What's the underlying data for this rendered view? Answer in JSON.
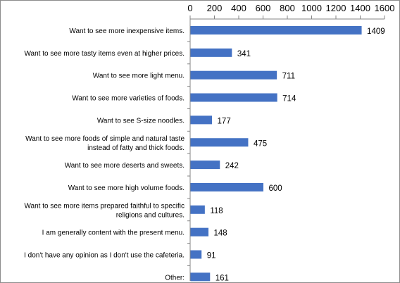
{
  "chart_data": {
    "type": "bar",
    "orientation": "horizontal",
    "title": "",
    "xlabel": "",
    "ylabel": "",
    "xlim": [
      0,
      1600
    ],
    "x_ticks": [
      "0",
      "200",
      "400",
      "600",
      "800",
      "1000",
      "1200",
      "1400",
      "1600"
    ],
    "x_axis_position": "top",
    "grid": false,
    "legend": "none",
    "bar_color": "#4472C4",
    "categories": [
      [
        "Want to see more inexpensive items."
      ],
      [
        "Want to see more tasty items even at higher prices."
      ],
      [
        "Want to see more light menu."
      ],
      [
        "Want to see more varieties of foods."
      ],
      [
        "Want to see S-size noodles."
      ],
      [
        "Want to see more foods of simple and natural taste",
        "instead of fatty and thick foods."
      ],
      [
        "Want to see more deserts and sweets."
      ],
      [
        "Want to see more high volume foods."
      ],
      [
        "Want to see more items prepared faithful to specific",
        "religions and cultures."
      ],
      [
        "I am generally content with the present menu."
      ],
      [
        "I don't have any opinion as I don't use the cafeteria."
      ],
      [
        "Other:"
      ]
    ],
    "values": [
      1409,
      341,
      711,
      714,
      177,
      475,
      242,
      600,
      118,
      148,
      91,
      161
    ],
    "data_labels": [
      "1409",
      "341",
      "711",
      "714",
      "177",
      "475",
      "242",
      "600",
      "118",
      "148",
      "91",
      "161"
    ]
  }
}
